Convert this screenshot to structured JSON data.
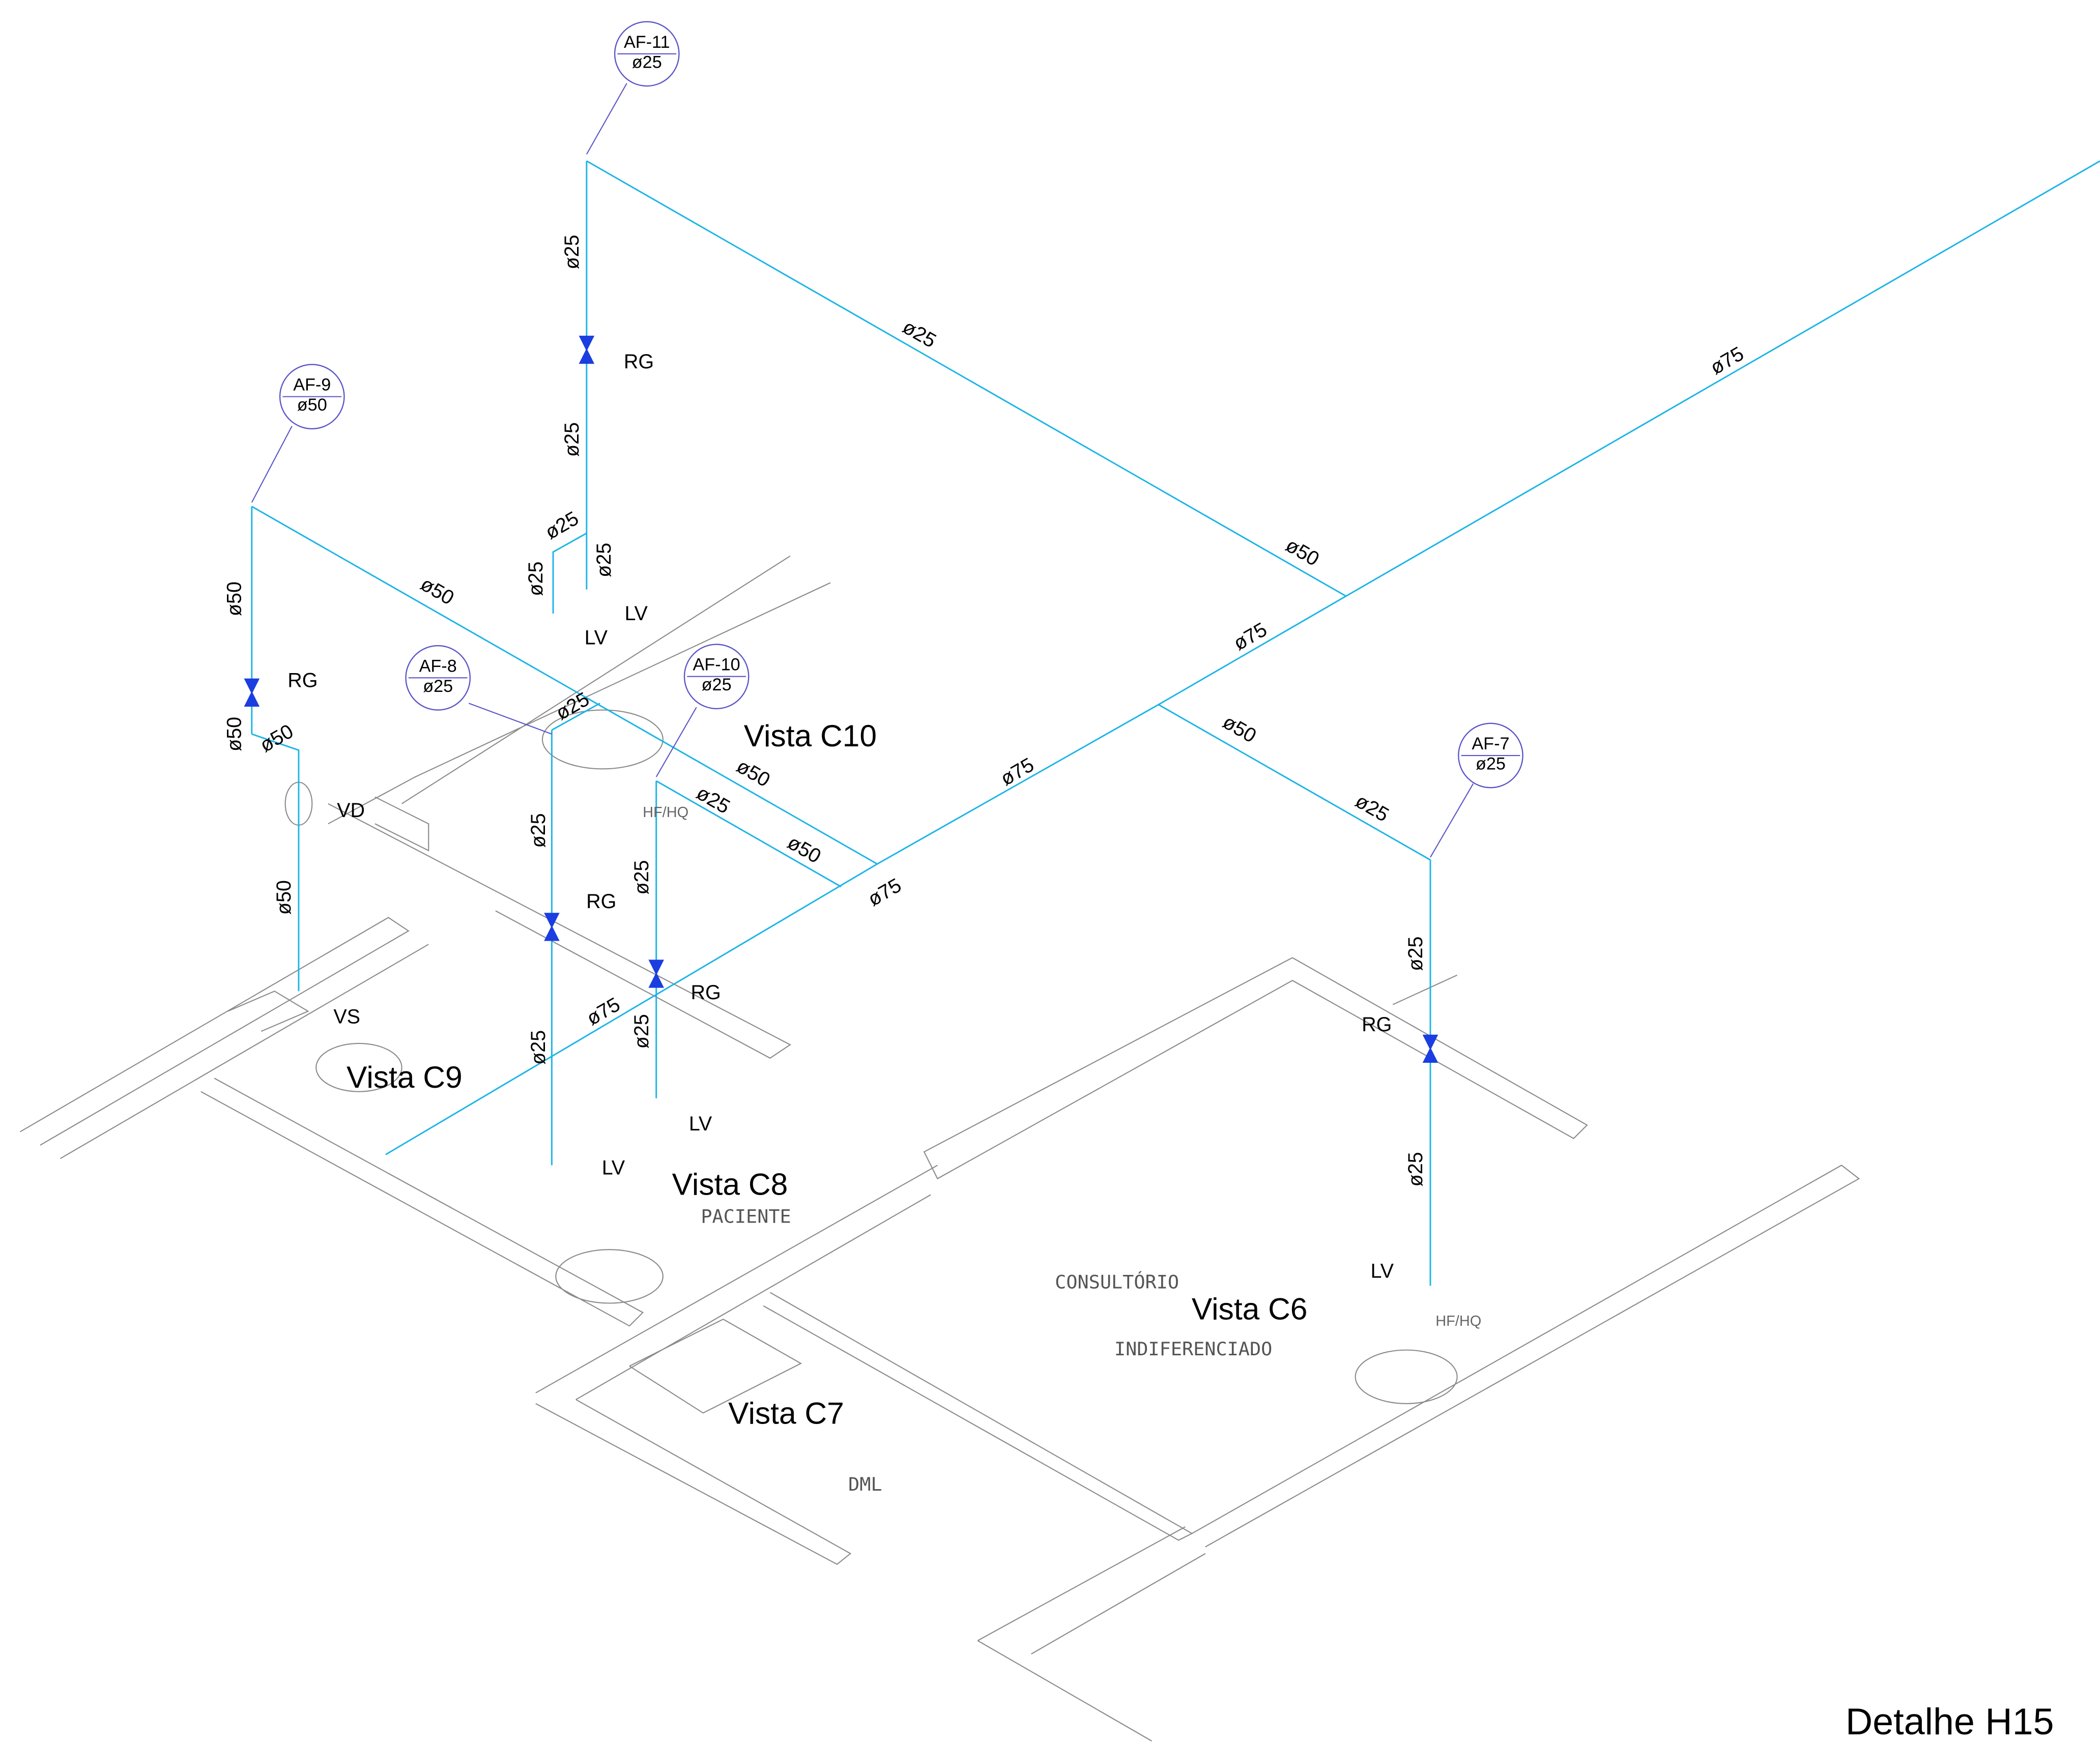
{
  "tags": [
    {
      "id": "AF-11",
      "diameter": "ø25"
    },
    {
      "id": "AF-9",
      "diameter": "ø50"
    },
    {
      "id": "AF-8",
      "diameter": "ø25"
    },
    {
      "id": "AF-10",
      "diameter": "ø25"
    },
    {
      "id": "AF-7",
      "diameter": "ø25"
    }
  ],
  "pipe_labels": [
    "ø25",
    "ø25",
    "ø25",
    "ø75",
    "ø50",
    "ø75",
    "ø25",
    "ø25",
    "ø25",
    "ø50",
    "ø50",
    "ø25",
    "ø50",
    "ø50",
    "ø50",
    "ø50",
    "ø75",
    "ø25",
    "ø25",
    "ø50",
    "ø25",
    "ø25",
    "ø75",
    "ø50",
    "ø25",
    "ø75",
    "ø25",
    "ø25",
    "ø25"
  ],
  "fixture_labels": [
    "RG",
    "RG",
    "RG",
    "RG",
    "RG",
    "LV",
    "LV",
    "LV",
    "LV",
    "LV",
    "VD",
    "VS",
    "HF/HQ",
    "HF/HQ"
  ],
  "views": [
    "Vista C10",
    "Vista C9",
    "Vista C8",
    "Vista C6",
    "Vista C7"
  ],
  "rooms": [
    "PACIENTE",
    "CONSULTÓRIO",
    "INDIFERENCIADO",
    "DML"
  ],
  "detail_title": "Detalhe H15"
}
